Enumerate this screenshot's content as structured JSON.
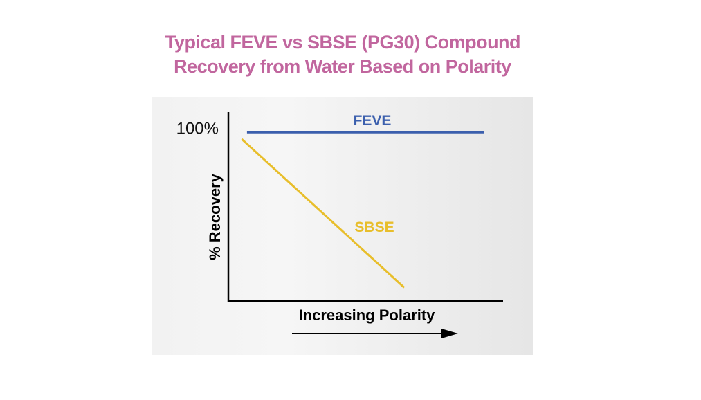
{
  "title_lines": [
    "Typical FEVE vs SBSE (PG30) Compound",
    "Recovery from Water Based on Polarity"
  ],
  "colors": {
    "title": "#c1669e",
    "feve": "#3b5fad",
    "sbse": "#e8be2b",
    "axis": "#000000"
  },
  "chart_data": {
    "type": "line",
    "xlabel": "Increasing Polarity",
    "ylabel": "% Recovery",
    "ytick_label": "100%",
    "ytick_value": 100,
    "xlim": [
      0,
      100
    ],
    "ylim": [
      0,
      112
    ],
    "series": [
      {
        "name": "FEVE",
        "color_key": "feve",
        "x": [
          7,
          96
        ],
        "y": [
          100,
          100
        ]
      },
      {
        "name": "SBSE",
        "color_key": "sbse",
        "x": [
          5,
          66
        ],
        "y": [
          96,
          8
        ]
      }
    ],
    "grid": false,
    "legend": "inline labels"
  }
}
